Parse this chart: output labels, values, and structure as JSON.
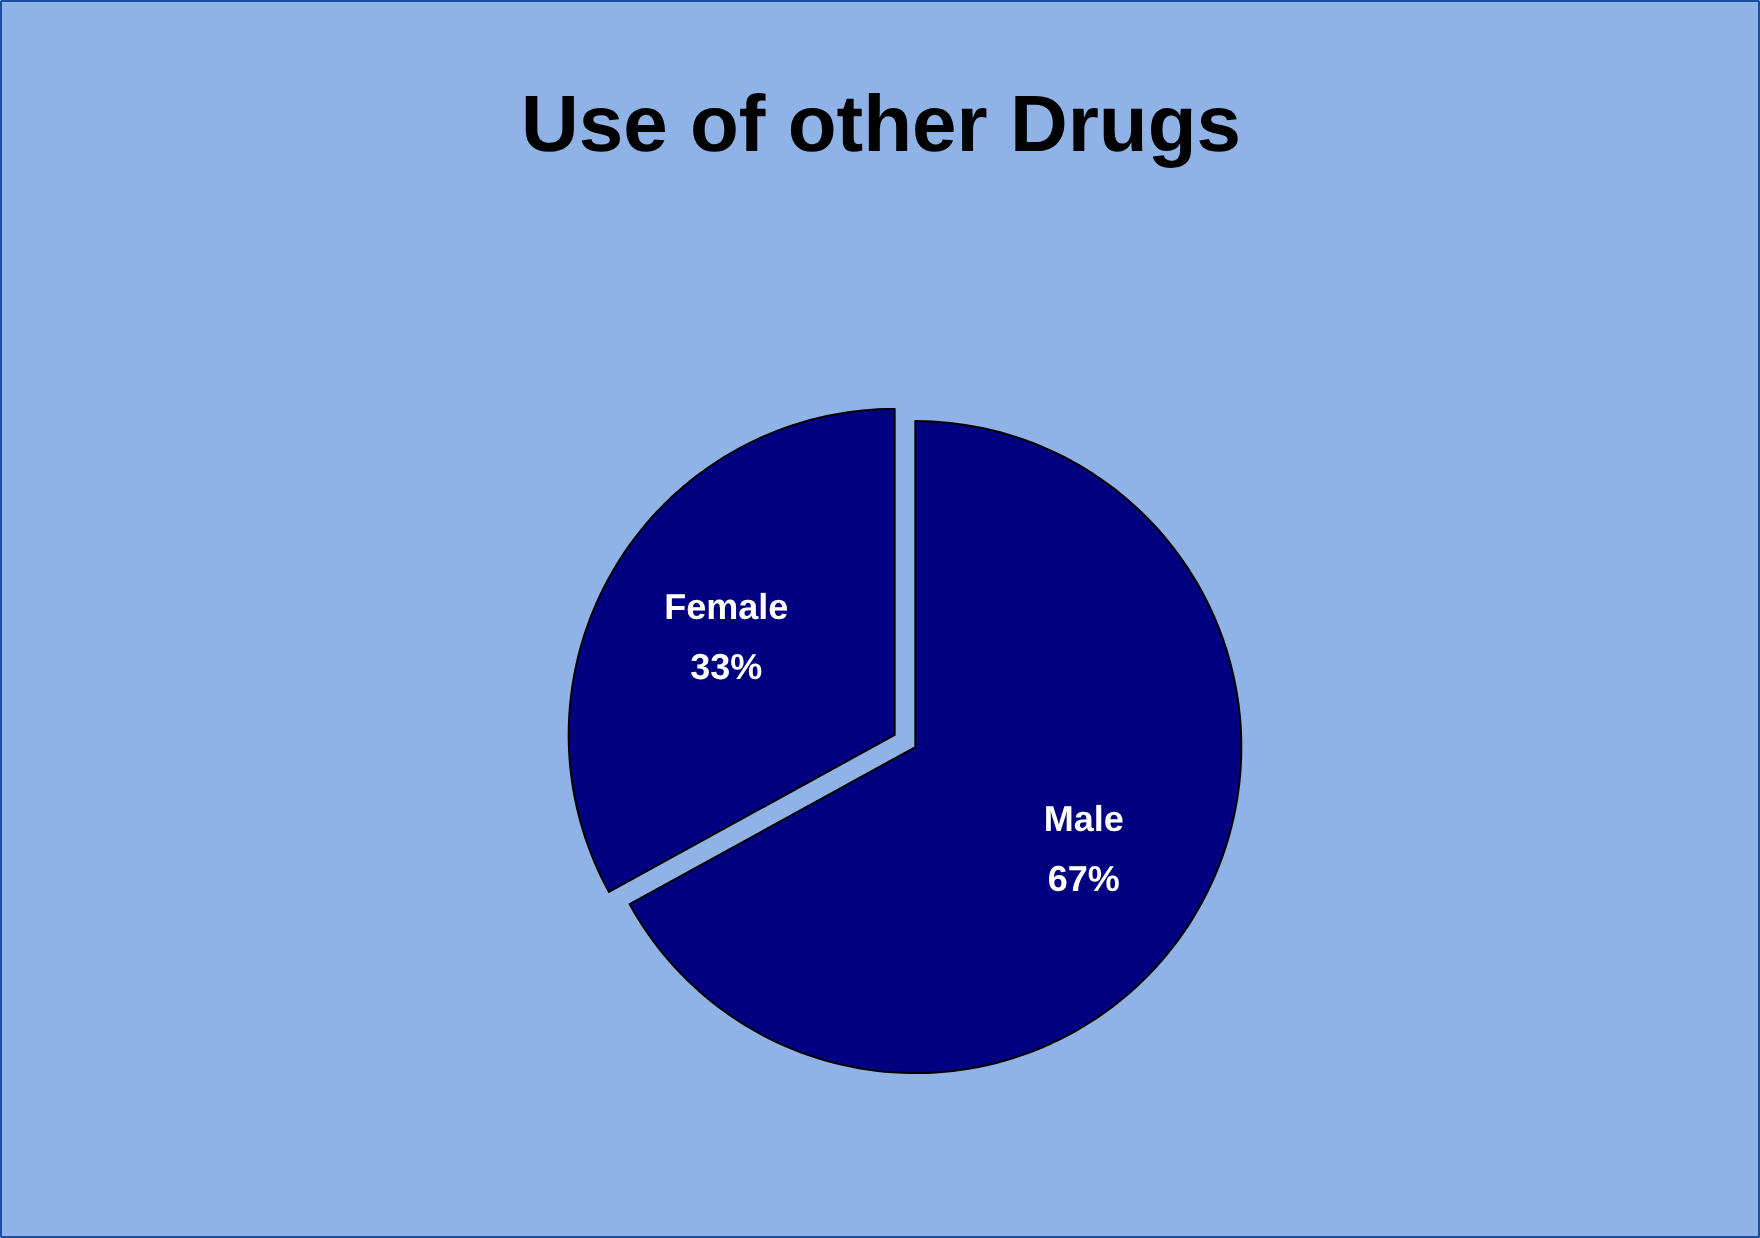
{
  "chart_data": {
    "type": "pie",
    "title": "Use of other Drugs",
    "categories": [
      "Male",
      "Female"
    ],
    "values": [
      67,
      33
    ],
    "colors": [
      "#000080",
      "#000080"
    ],
    "value_labels": [
      "67%",
      "33%"
    ]
  }
}
